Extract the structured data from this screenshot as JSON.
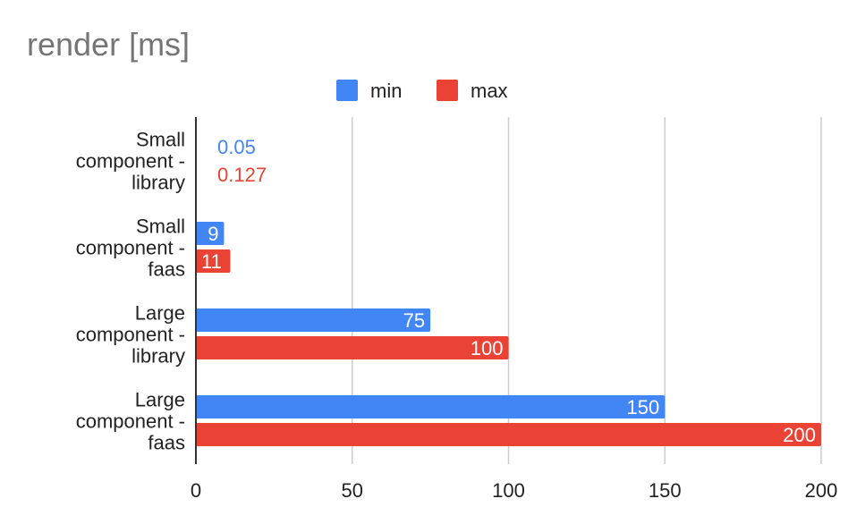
{
  "chart_data": {
    "type": "bar",
    "orientation": "horizontal",
    "title": "render [ms]",
    "xlabel": "",
    "ylabel": "",
    "xlim": [
      0,
      200
    ],
    "x_ticks": [
      "0",
      "50",
      "100",
      "150",
      "200"
    ],
    "grid": true,
    "legend_position": "top",
    "categories": [
      [
        "Small",
        "component -",
        "library"
      ],
      [
        "Small",
        "component -",
        "faas"
      ],
      [
        "Large",
        "component -",
        "library"
      ],
      [
        "Large",
        "component -",
        "faas"
      ]
    ],
    "series": [
      {
        "name": "min",
        "color": "#4285f4",
        "values": [
          0.05,
          9,
          75,
          150
        ],
        "labels": [
          "0.05",
          "9",
          "75",
          "150"
        ]
      },
      {
        "name": "max",
        "color": "#ea4335",
        "values": [
          0.127,
          11,
          100,
          200
        ],
        "labels": [
          "0.127",
          "11",
          "100",
          "200"
        ]
      }
    ]
  }
}
